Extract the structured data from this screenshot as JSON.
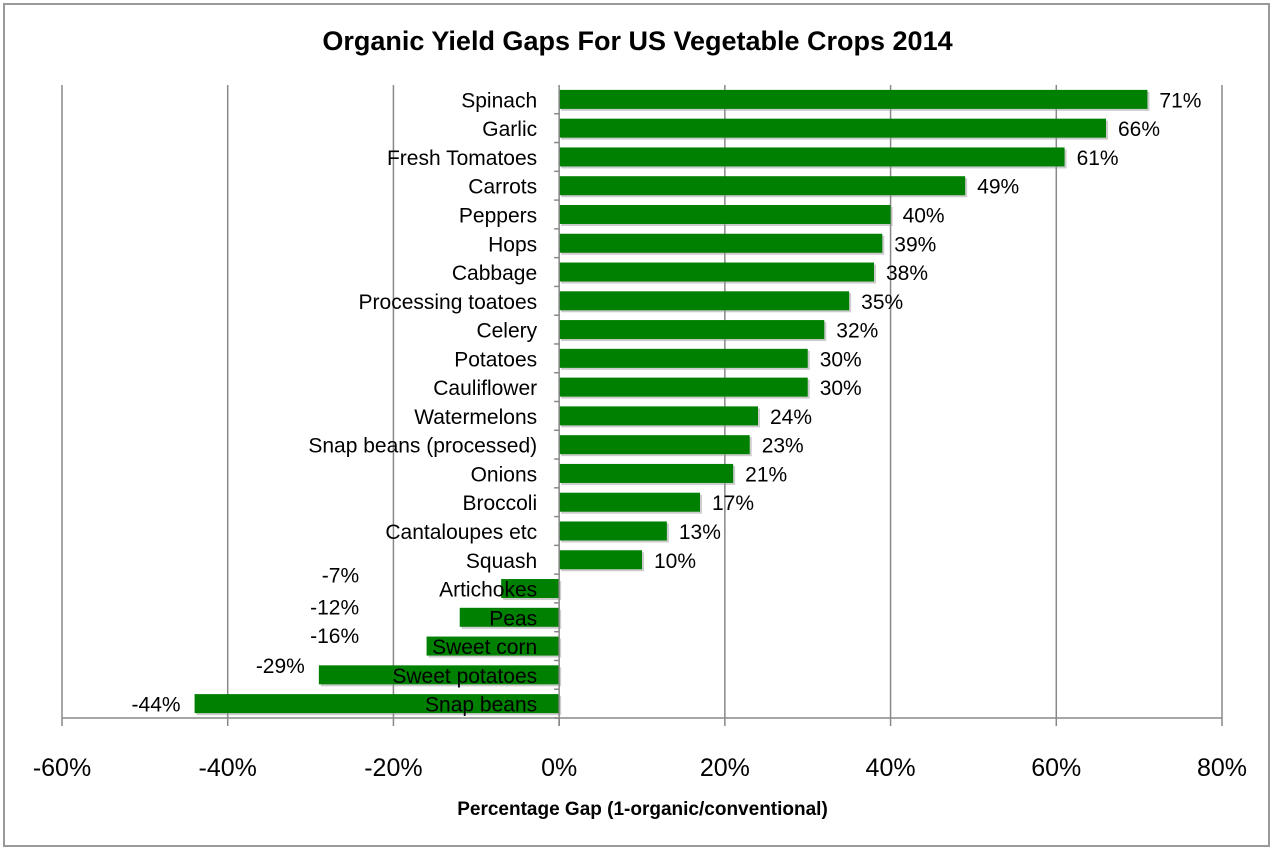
{
  "chart_data": {
    "type": "bar",
    "orientation": "horizontal",
    "title": "Organic Yield Gaps For US Vegetable Crops 2014",
    "xlabel": "Percentage Gap (1-organic/conventional)",
    "ylabel": "",
    "xlim": [
      -60,
      80
    ],
    "xticks": [
      -60,
      -40,
      -20,
      0,
      20,
      40,
      60,
      80
    ],
    "xtick_labels": [
      "-60%",
      "-40%",
      "-20%",
      "0%",
      "20%",
      "40%",
      "60%",
      "80%"
    ],
    "grid": "vertical",
    "bar_color": "#008000",
    "categories": [
      "Spinach",
      "Garlic",
      "Fresh Tomatoes",
      "Carrots",
      "Peppers",
      "Hops",
      "Cabbage",
      "Processing toatoes",
      "Celery",
      "Potatoes",
      "Cauliflower",
      "Watermelons",
      "Snap beans (processed)",
      "Onions",
      "Broccoli",
      "Cantaloupes etc",
      "Squash",
      "Artichokes",
      "Peas",
      "Sweet corn",
      "Sweet potatoes",
      "Snap beans"
    ],
    "values": [
      71,
      66,
      61,
      49,
      40,
      39,
      38,
      35,
      32,
      30,
      30,
      24,
      23,
      21,
      17,
      13,
      10,
      -7,
      -12,
      -16,
      -29,
      -44
    ],
    "data_labels": [
      "71%",
      "66%",
      "61%",
      "49%",
      "40%",
      "39%",
      "38%",
      "35%",
      "32%",
      "30%",
      "30%",
      "24%",
      "23%",
      "21%",
      "17%",
      "13%",
      "10%",
      "-7%",
      "-12%",
      "-16%",
      "-29%",
      "-44%"
    ]
  }
}
